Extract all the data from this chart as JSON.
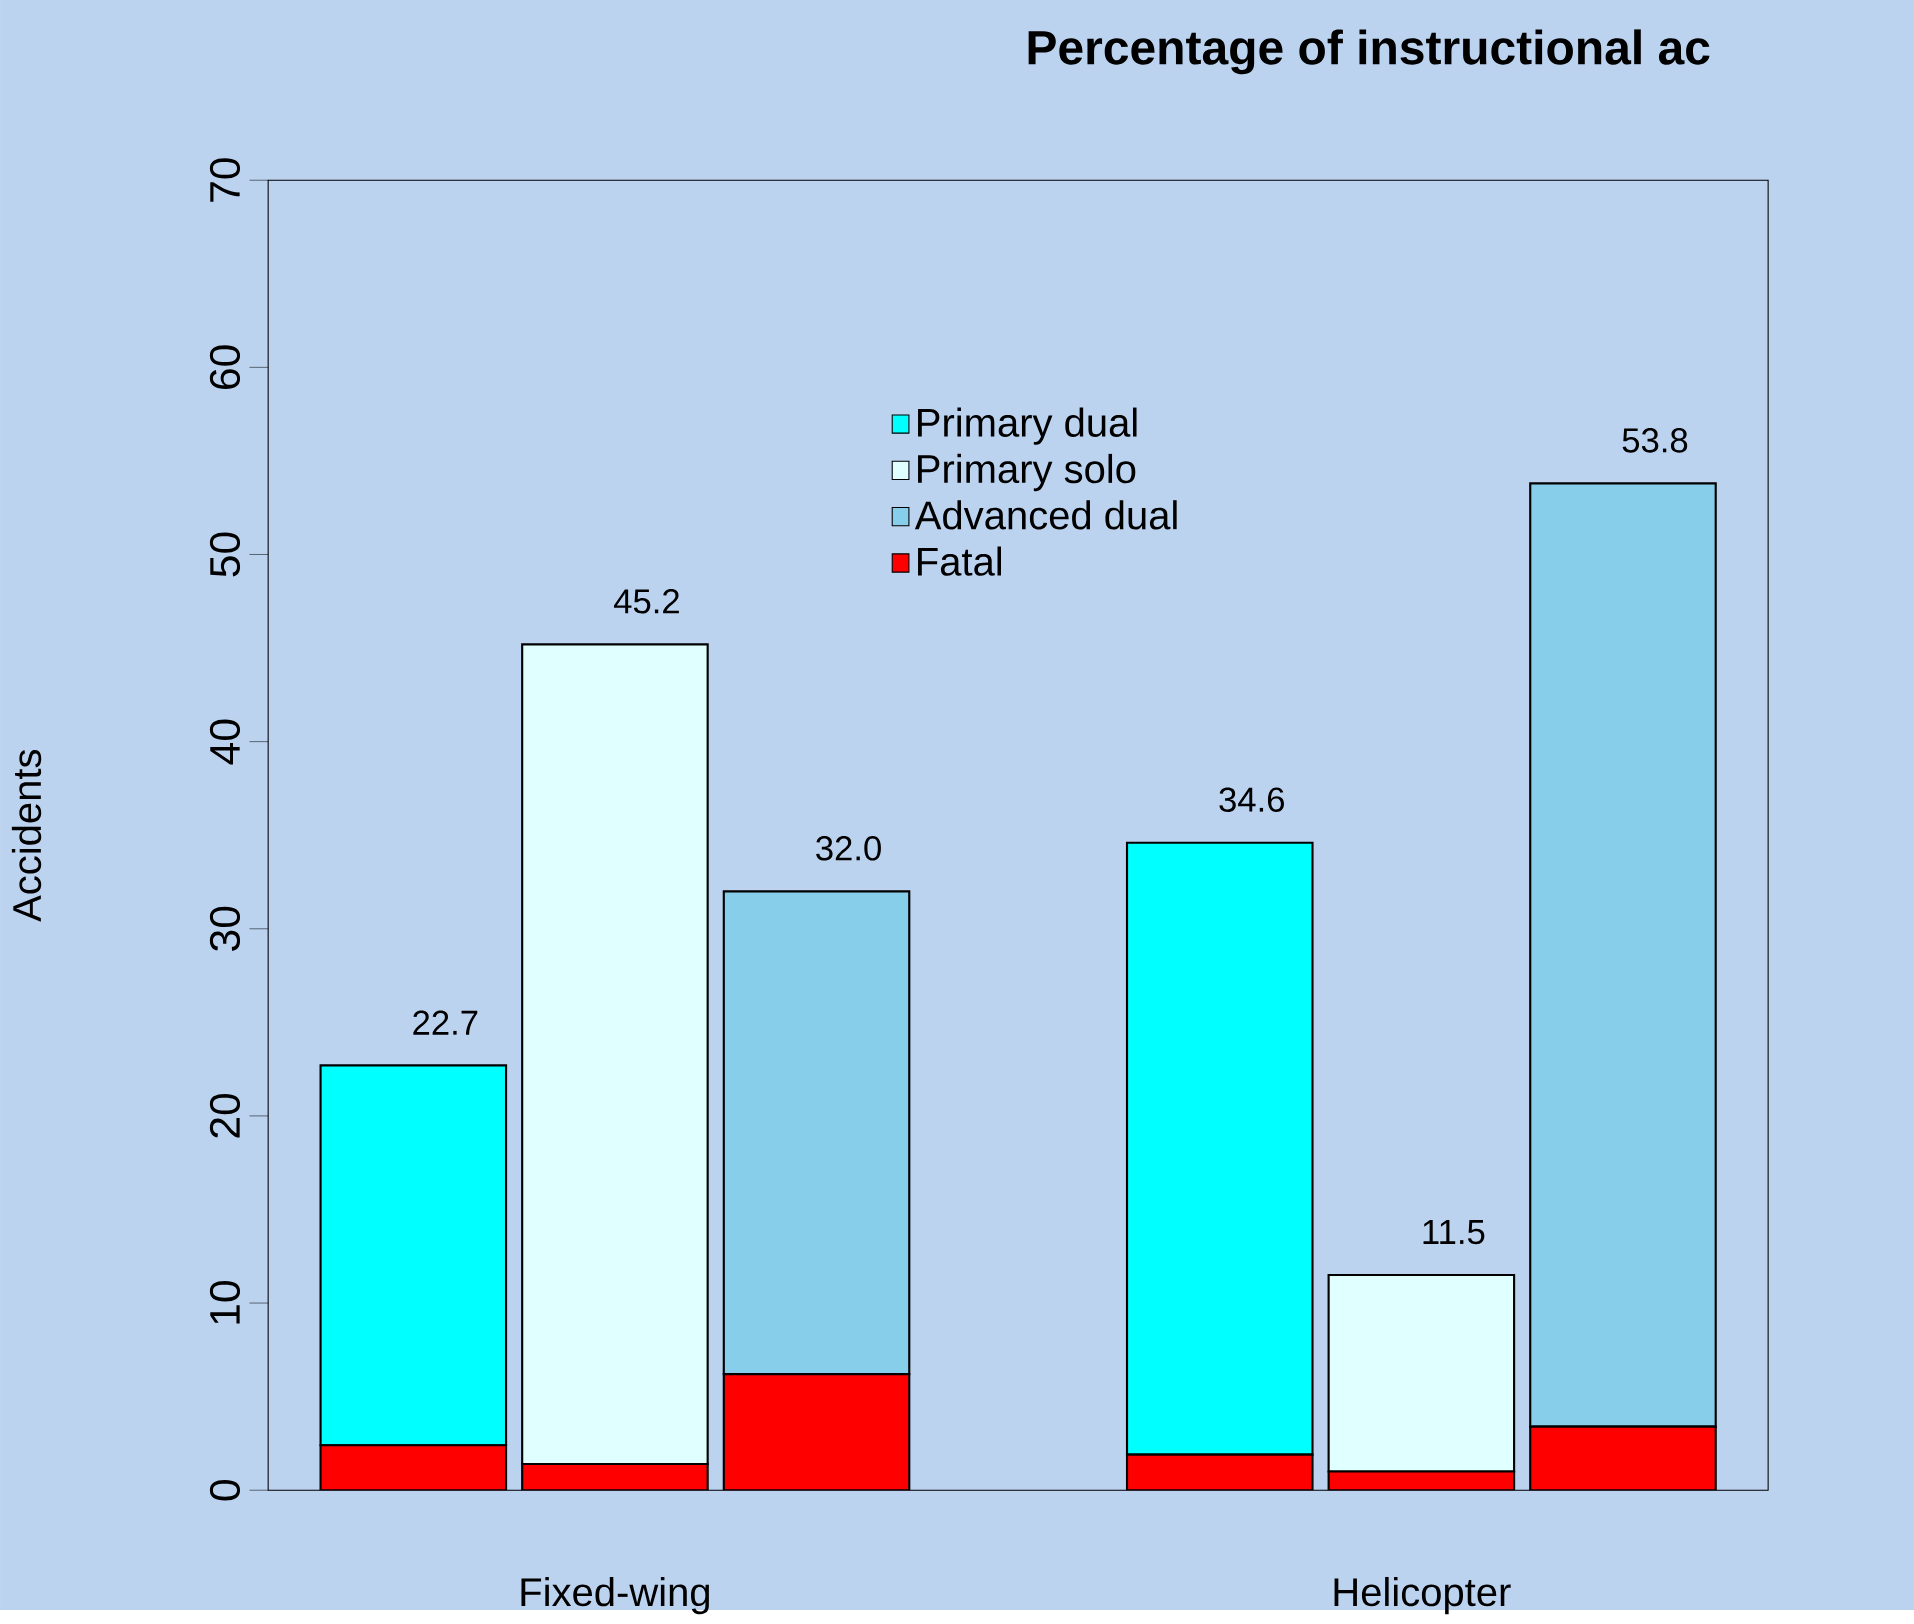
{
  "chart_data": {
    "type": "bar",
    "title": "Percentage of instructional ac",
    "ylabel": "Accidents",
    "categories": [
      null,
      "Fixed-wing",
      null,
      null,
      null,
      "Helicopter",
      null
    ],
    "series": [
      {
        "name": "Fatal",
        "color": "#ff0000",
        "values": [
          2.4,
          1.4,
          6.2,
          null,
          1.9,
          1.0,
          3.4
        ]
      },
      {
        "name": "Primary dual",
        "color": "#00ffff",
        "values": [
          20.3,
          null,
          null,
          null,
          32.7,
          null,
          null
        ]
      },
      {
        "name": "Primary solo",
        "color": "#e0ffff",
        "values": [
          null,
          43.8,
          null,
          null,
          null,
          10.5,
          null
        ]
      },
      {
        "name": "Advanced dual",
        "color": "#87ceeb",
        "values": [
          null,
          null,
          25.8,
          null,
          null,
          null,
          50.4
        ]
      }
    ],
    "stacked": true,
    "totals": [
      "22.7",
      "45.2",
      "32.0",
      null,
      "34.6",
      "11.5",
      "53.8"
    ],
    "ylim": [
      0,
      70
    ],
    "yticks": [
      0,
      10,
      20,
      30,
      40,
      50,
      60,
      70
    ],
    "legend": "top",
    "grid": false
  }
}
